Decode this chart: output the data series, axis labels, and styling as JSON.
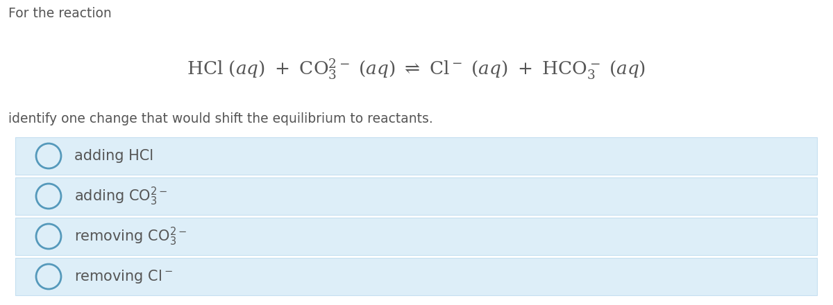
{
  "background_color": "#ffffff",
  "text_color": "#555555",
  "option_bg_color": "#ddeef8",
  "option_border_color": "#c5dff0",
  "title_text": "For the reaction",
  "subtitle_text": "identify one change that would shift the equilibrium to reactants.",
  "title_fontsize": 13.5,
  "subtitle_fontsize": 13.5,
  "equation_fontsize": 19,
  "option_fontsize": 15,
  "circle_color": "#5599bb",
  "circle_linewidth": 2.0
}
